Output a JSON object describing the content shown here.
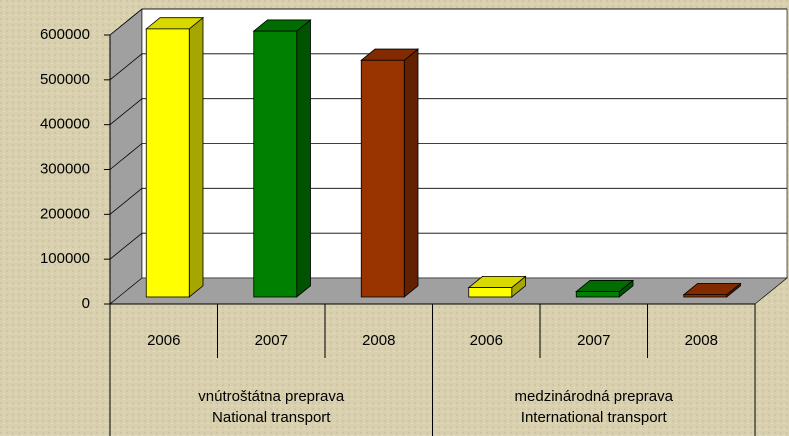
{
  "chart_data": {
    "type": "bar3d",
    "categories": [
      [
        "vnútroštátna preprava",
        "National transport"
      ],
      [
        "medzinárodná preprava",
        "International transport"
      ]
    ],
    "series": [
      {
        "name": "2006",
        "color": "#ffff00",
        "values": [
          598000,
          21000
        ]
      },
      {
        "name": "2007",
        "color": "#008000",
        "values": [
          593000,
          12000
        ]
      },
      {
        "name": "2008",
        "color": "#993300",
        "values": [
          528000,
          5000
        ]
      }
    ],
    "ylim": [
      0,
      600000
    ],
    "yticks": [
      0,
      100000,
      200000,
      300000,
      400000,
      500000,
      600000
    ],
    "grid": true
  }
}
